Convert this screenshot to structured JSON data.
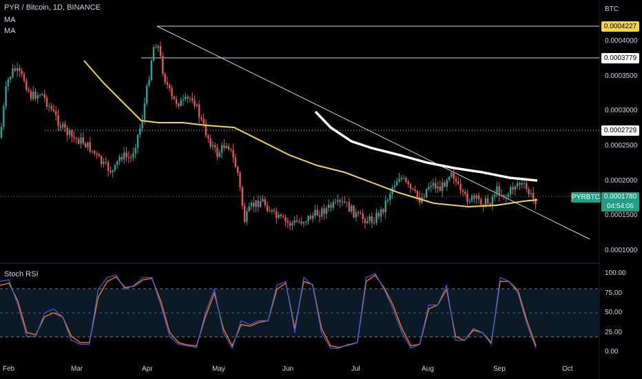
{
  "header": {
    "title": "PYR / Bitcoin, 1D, BINANCE",
    "indicators": [
      "MA",
      "MA"
    ],
    "currency": "BTC"
  },
  "price_axis": {
    "ticks": [
      "0.0004000",
      "0.0003500",
      "0.0003000",
      "0.0002500",
      "0.0002000",
      "0.0001500",
      "0.0001000"
    ],
    "tick_values": [
      0.0004,
      0.00035,
      0.0003,
      0.00025,
      0.0002,
      0.00015,
      0.0001
    ]
  },
  "price_labels": {
    "high": "0.0004227",
    "level1": "0.0003779",
    "level2": "0.0002729",
    "symbol": "PYRBTC",
    "last": "0.0001780",
    "countdown": "04:54:06"
  },
  "stoch_rsi": {
    "label": "Stoch RSI",
    "ticks": [
      "100.00",
      "75.00",
      "50.00",
      "25.00",
      "0.00"
    ],
    "tick_values": [
      100,
      75,
      50,
      25,
      0
    ]
  },
  "time_axis": [
    "Feb",
    "Mar",
    "Apr",
    "May",
    "Jun",
    "Jul",
    "Aug",
    "Sep",
    "Oct"
  ],
  "colors": {
    "up": "#26a69a",
    "down": "#ef5350",
    "ma_yellow": "#f5d742",
    "ma_white": "#ffffff",
    "k_line": "#2962ff",
    "d_line": "#ff6d00",
    "accent": "#1e9f86",
    "highlight": "#f5d742"
  },
  "chart_data": {
    "type": "candlestick",
    "x_range": [
      "Feb",
      "Oct"
    ],
    "y_range": [
      0.0001,
      0.0004227
    ],
    "levels": [
      0.0004227,
      0.0003779,
      0.0002729,
      0.000178
    ],
    "trendline": {
      "from": {
        "x": "Apr",
        "y": 0.0004227
      },
      "to": {
        "x": "Oct",
        "y": 0.00012
      }
    },
    "ma_slow_points": [
      0.000375,
      0.00033,
      0.000295,
      0.000277,
      0.000275,
      0.000272,
      0.000268,
      0.000255,
      0.000235,
      0.000215,
      0.0002,
      0.000185,
      0.00017,
      0.000165,
      0.000168,
      0.000175
    ],
    "ma_fast_points": [
      0.0003,
      0.000265,
      0.00025,
      0.00023,
      0.00021,
      0.0002
    ],
    "stoch_k": [
      90,
      92,
      60,
      20,
      20,
      50,
      55,
      45,
      15,
      10,
      10,
      80,
      95,
      98,
      80,
      85,
      95,
      95,
      60,
      20,
      10,
      8,
      6,
      50,
      80,
      25,
      5,
      40,
      35,
      40,
      40,
      85,
      90,
      25,
      95,
      85,
      25,
      5,
      5,
      10,
      12,
      95,
      100,
      80,
      55,
      25,
      5,
      10,
      60,
      60,
      85,
      15,
      15,
      30,
      25,
      10,
      95,
      90,
      75,
      35,
      5
    ],
    "stoch_d": [
      85,
      88,
      65,
      25,
      22,
      45,
      50,
      45,
      20,
      12,
      12,
      70,
      90,
      96,
      82,
      84,
      92,
      94,
      65,
      25,
      12,
      9,
      8,
      45,
      75,
      30,
      8,
      35,
      33,
      38,
      40,
      80,
      88,
      30,
      90,
      86,
      30,
      8,
      6,
      9,
      12,
      90,
      98,
      82,
      60,
      30,
      8,
      10,
      55,
      60,
      80,
      20,
      15,
      28,
      25,
      12,
      90,
      90,
      78,
      40,
      8
    ]
  }
}
